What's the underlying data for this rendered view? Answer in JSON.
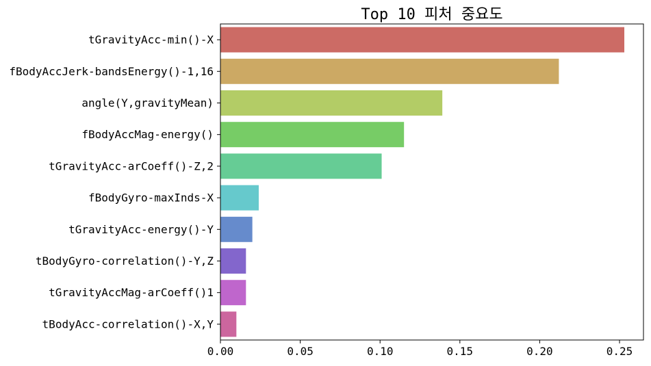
{
  "chart_data": {
    "type": "bar",
    "orientation": "horizontal",
    "title": "Top 10 피처 중요도",
    "xlabel": "",
    "ylabel": "",
    "xlim": [
      0,
      0.265
    ],
    "xticks": [
      "0.00",
      "0.05",
      "0.10",
      "0.15",
      "0.20",
      "0.25"
    ],
    "xtick_values": [
      0,
      0.05,
      0.1,
      0.15,
      0.2,
      0.25
    ],
    "grid": false,
    "categories": [
      "tGravityAcc-min()-X",
      "fBodyAccJerk-bandsEnergy()-1,16",
      "angle(Y,gravityMean)",
      "fBodyAccMag-energy()",
      "tGravityAcc-arCoeff()-Z,2",
      "fBodyGyro-maxInds-X",
      "tGravityAcc-energy()-Y",
      "tBodyGyro-correlation()-Y,Z",
      "tGravityAccMag-arCoeff()1",
      "tBodyAcc-correlation()-X,Y"
    ],
    "values": [
      0.253,
      0.212,
      0.139,
      0.115,
      0.101,
      0.024,
      0.02,
      0.016,
      0.016,
      0.01
    ],
    "colors": [
      "#cc6b65",
      "#cca964",
      "#b3cc66",
      "#77cc66",
      "#66cc95",
      "#66c9cc",
      "#668bcc",
      "#8366cc",
      "#bf66cc",
      "#cc669e"
    ]
  }
}
